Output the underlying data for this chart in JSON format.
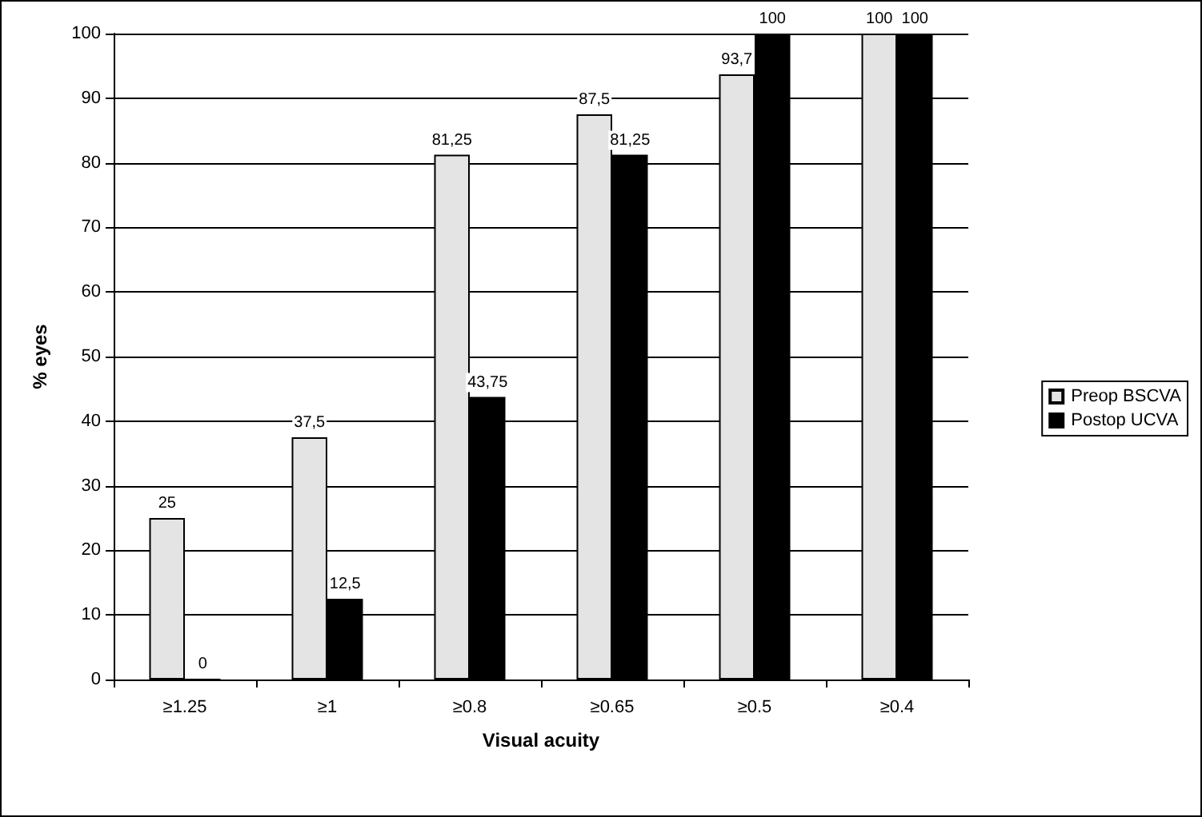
{
  "chart_data": {
    "type": "bar",
    "xlabel": "Visual acuity",
    "ylabel": "% eyes",
    "categories": [
      "≥1.25",
      "≥1",
      "≥0.8",
      "≥0.65",
      "≥0.5",
      "≥0.4"
    ],
    "series": [
      {
        "name": "Preop BSCVA",
        "color": "#e4e4e4",
        "values": [
          25,
          37.5,
          81.25,
          87.5,
          93.7,
          100
        ],
        "value_labels": [
          "25",
          "37,5",
          "81,25",
          "87,5",
          "93,7",
          "100"
        ]
      },
      {
        "name": "Postop UCVA",
        "color": "#000000",
        "values": [
          0,
          12.5,
          43.75,
          81.25,
          100,
          100
        ],
        "value_labels": [
          "0",
          "12,5",
          "43,75",
          "81,25",
          "100",
          "100"
        ]
      }
    ],
    "ylim": [
      0,
      100
    ],
    "yticks": [
      0,
      10,
      20,
      30,
      40,
      50,
      60,
      70,
      80,
      90,
      100
    ],
    "grid": "y",
    "legend": "right"
  }
}
